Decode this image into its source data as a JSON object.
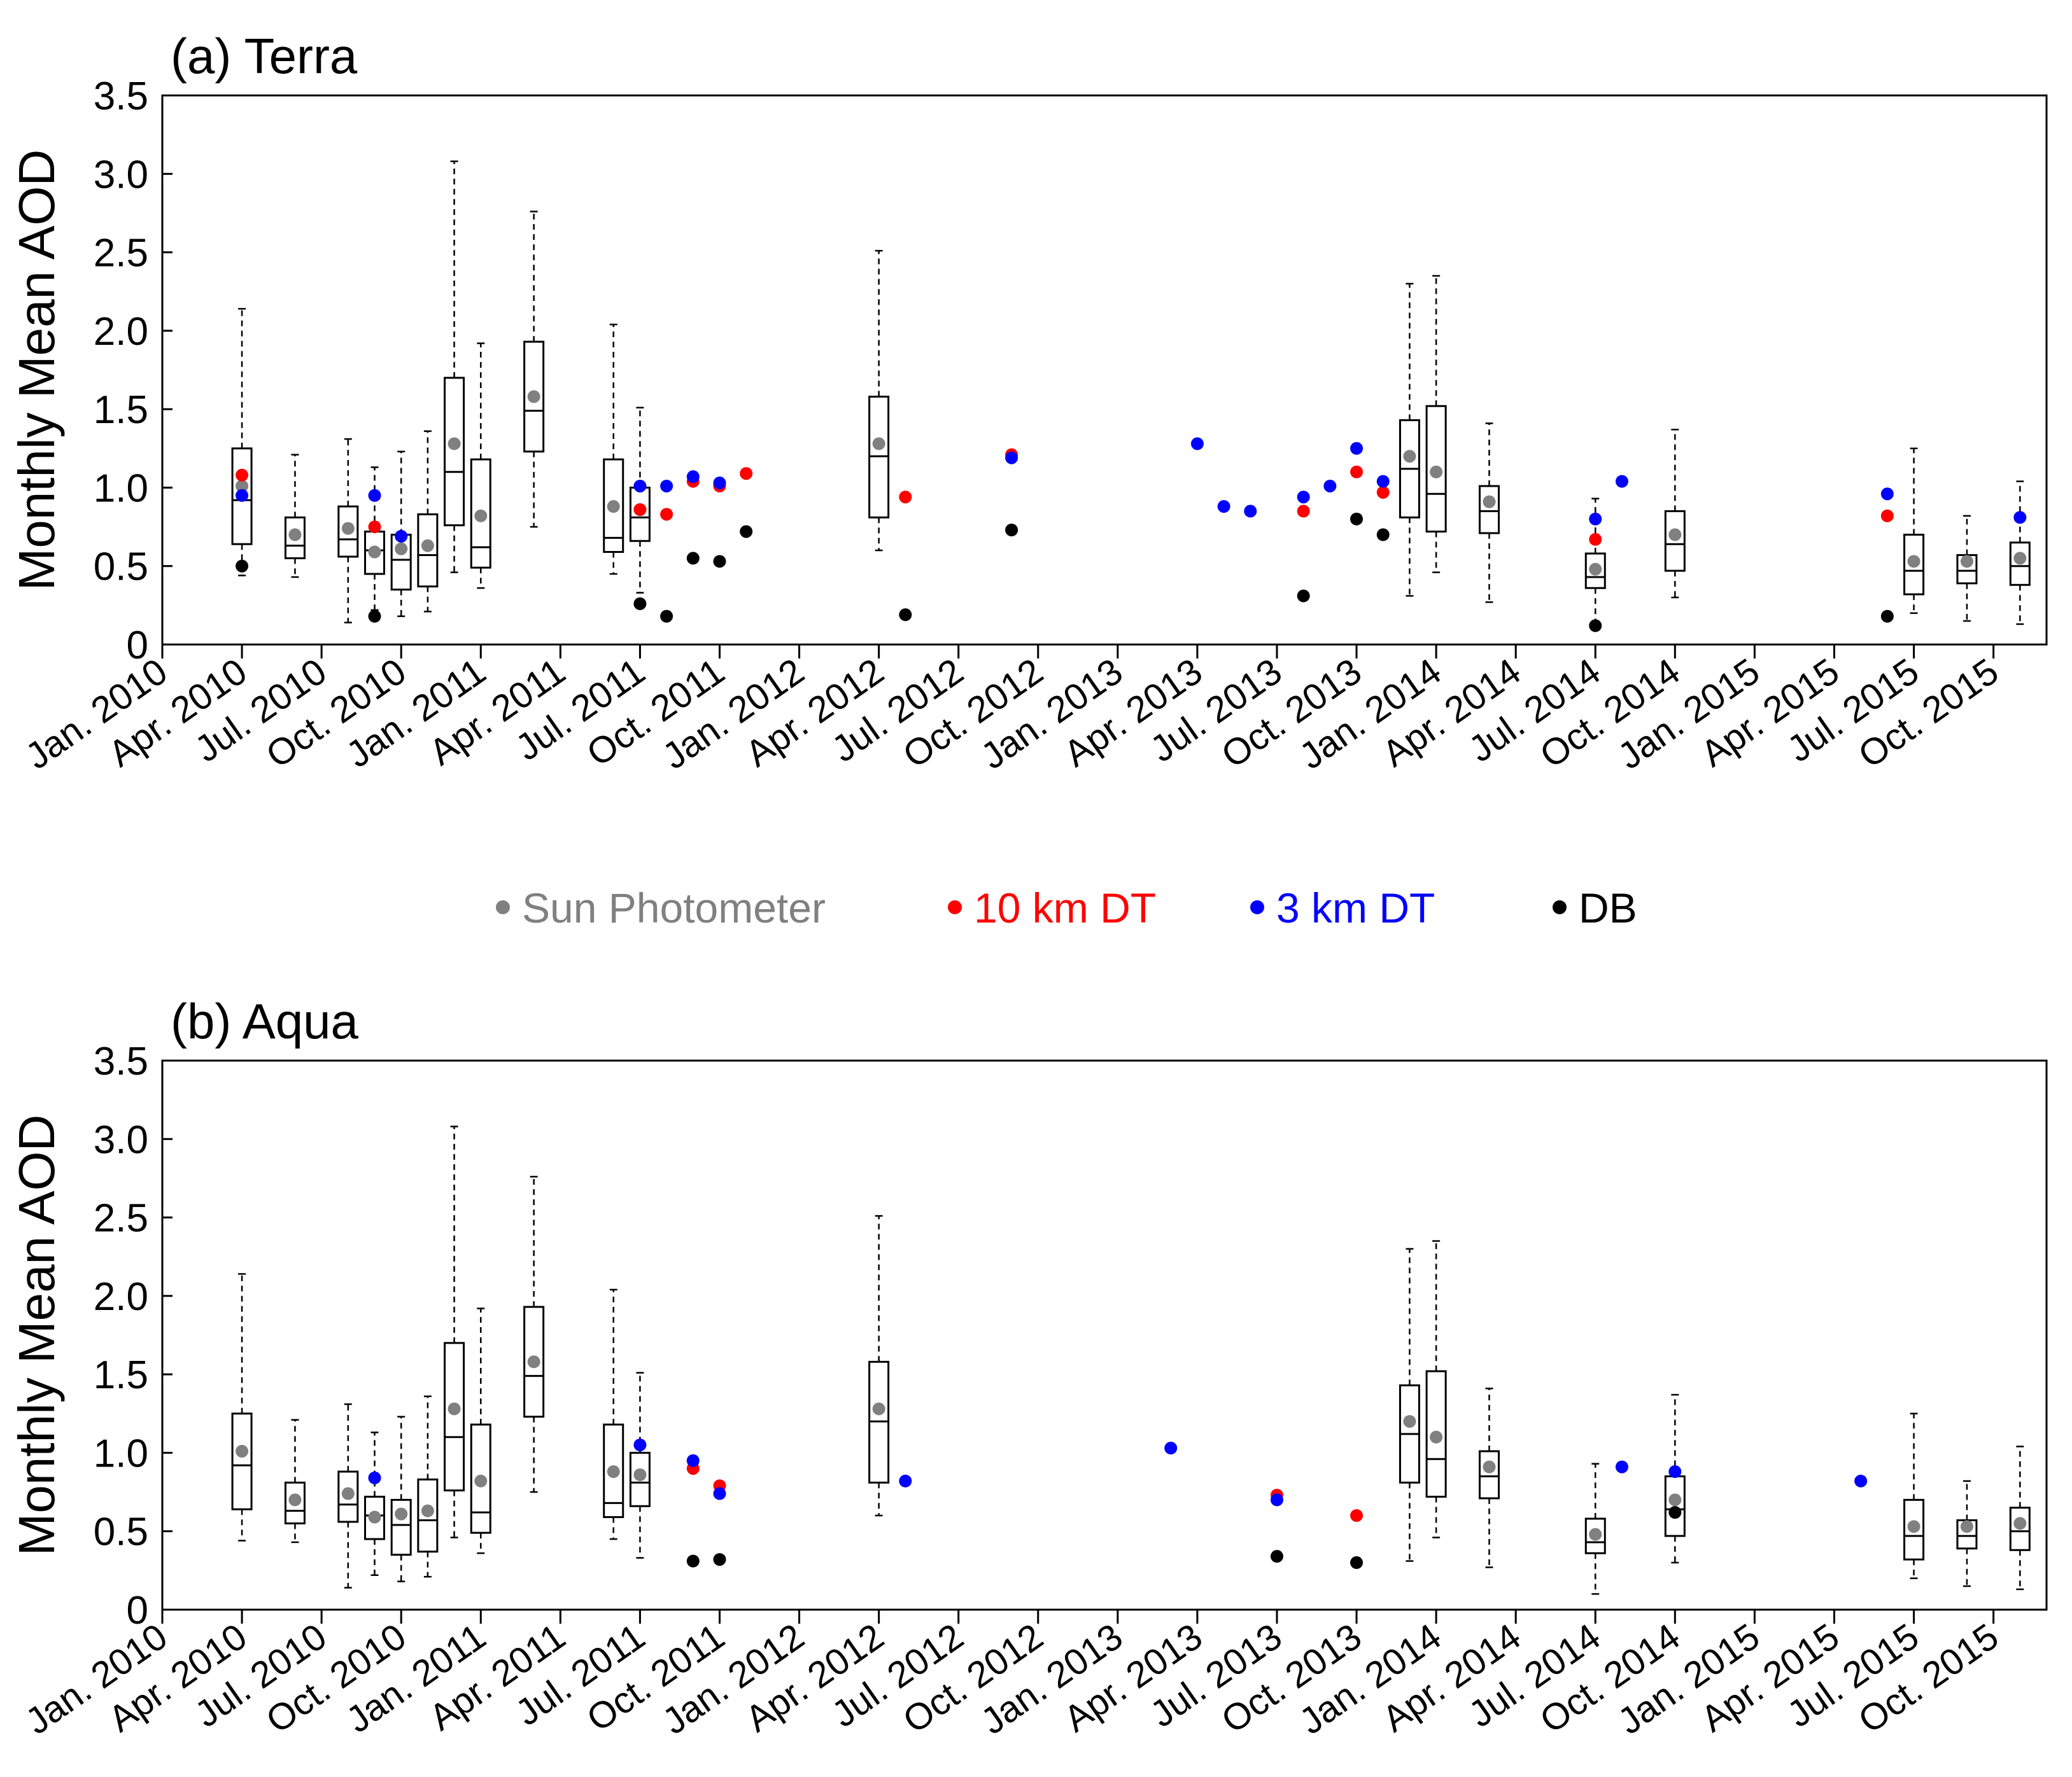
{
  "legend": {
    "placement": "center, between panels",
    "entries": [
      {
        "label": "Sun Photometer",
        "color": "#808080"
      },
      {
        "label": "10 km DT",
        "color": "#ff0000"
      },
      {
        "label": "3 km DT",
        "color": "#0000ff"
      },
      {
        "label": "DB",
        "color": "#000000"
      }
    ]
  },
  "chart_data": [
    {
      "type": "box",
      "title": "(a) Terra",
      "xlabel": "",
      "ylabel": "Monthly Mean AOD",
      "ylim": [
        0,
        3.5
      ],
      "xlim_months": [
        0,
        71
      ],
      "xticks": {
        "months": [
          0,
          3,
          6,
          9,
          12,
          15,
          18,
          21,
          24,
          27,
          30,
          33,
          36,
          39,
          42,
          45,
          48,
          51,
          54,
          57,
          60,
          63,
          66,
          69
        ],
        "labels": [
          "Jan. 2010",
          "Apr. 2010",
          "Jul. 2010",
          "Oct. 2010",
          "Jan. 2011",
          "Apr. 2011",
          "Jul. 2011",
          "Oct. 2011",
          "Jan. 2012",
          "Apr. 2012",
          "Jul. 2012",
          "Oct. 2012",
          "Jan. 2013",
          "Apr. 2013",
          "Jul. 2013",
          "Oct. 2013",
          "Jan. 2014",
          "Apr. 2014",
          "Jul. 2014",
          "Oct. 2014",
          "Jan. 2015",
          "Apr. 2015",
          "Jul. 2015",
          "Oct. 2015"
        ]
      },
      "yticks": {
        "values": [
          0,
          0.5,
          1,
          1.5,
          2,
          2.5,
          3,
          3.5
        ],
        "labels": [
          "0",
          "0.5",
          "1.0",
          "1.5",
          "2.0",
          "2.5",
          "3.0",
          "3.5"
        ]
      },
      "sun_photometer_boxes": [
        {
          "month": 3,
          "min": 0.44,
          "q1": 0.64,
          "median": 0.92,
          "q3": 1.25,
          "max": 2.14,
          "mean": 1.01
        },
        {
          "month": 5,
          "min": 0.43,
          "q1": 0.55,
          "median": 0.63,
          "q3": 0.81,
          "max": 1.21,
          "mean": 0.7
        },
        {
          "month": 7,
          "min": 0.14,
          "q1": 0.56,
          "median": 0.67,
          "q3": 0.88,
          "max": 1.31,
          "mean": 0.74
        },
        {
          "month": 8,
          "min": 0.22,
          "q1": 0.45,
          "median": 0.6,
          "q3": 0.72,
          "max": 1.13,
          "mean": 0.59
        },
        {
          "month": 9,
          "min": 0.18,
          "q1": 0.35,
          "median": 0.54,
          "q3": 0.7,
          "max": 1.23,
          "mean": 0.61
        },
        {
          "month": 10,
          "min": 0.21,
          "q1": 0.37,
          "median": 0.57,
          "q3": 0.83,
          "max": 1.36,
          "mean": 0.63
        },
        {
          "month": 11,
          "min": 0.46,
          "q1": 0.76,
          "median": 1.1,
          "q3": 1.7,
          "max": 3.08,
          "mean": 1.28
        },
        {
          "month": 12,
          "min": 0.36,
          "q1": 0.49,
          "median": 0.62,
          "q3": 1.18,
          "max": 1.92,
          "mean": 0.82
        },
        {
          "month": 14,
          "min": 0.75,
          "q1": 1.23,
          "median": 1.49,
          "q3": 1.93,
          "max": 2.76,
          "mean": 1.58
        },
        {
          "month": 17,
          "min": 0.45,
          "q1": 0.59,
          "median": 0.68,
          "q3": 1.18,
          "max": 2.04,
          "mean": 0.88
        },
        {
          "month": 18,
          "min": 0.33,
          "q1": 0.66,
          "median": 0.81,
          "q3": 1.0,
          "max": 1.51,
          "mean": 0.86
        },
        {
          "month": 27,
          "min": 0.6,
          "q1": 0.81,
          "median": 1.2,
          "q3": 1.58,
          "max": 2.51,
          "mean": 1.28
        },
        {
          "month": 47,
          "min": 0.31,
          "q1": 0.81,
          "median": 1.12,
          "q3": 1.43,
          "max": 2.3,
          "mean": 1.2
        },
        {
          "month": 48,
          "min": 0.46,
          "q1": 0.72,
          "median": 0.96,
          "q3": 1.52,
          "max": 2.35,
          "mean": 1.1
        },
        {
          "month": 50,
          "min": 0.27,
          "q1": 0.71,
          "median": 0.85,
          "q3": 1.01,
          "max": 1.41,
          "mean": 0.91
        },
        {
          "month": 54,
          "min": 0.1,
          "q1": 0.36,
          "median": 0.43,
          "q3": 0.58,
          "max": 0.93,
          "mean": 0.48
        },
        {
          "month": 57,
          "min": 0.3,
          "q1": 0.47,
          "median": 0.64,
          "q3": 0.85,
          "max": 1.37,
          "mean": 0.7
        },
        {
          "month": 66,
          "min": 0.2,
          "q1": 0.32,
          "median": 0.47,
          "q3": 0.7,
          "max": 1.25,
          "mean": 0.53
        },
        {
          "month": 68,
          "min": 0.15,
          "q1": 0.39,
          "median": 0.47,
          "q3": 0.57,
          "max": 0.82,
          "mean": 0.53
        },
        {
          "month": 70,
          "min": 0.13,
          "q1": 0.38,
          "median": 0.5,
          "q3": 0.65,
          "max": 1.04,
          "mean": 0.55
        }
      ],
      "series": [
        {
          "name": "10 km DT",
          "points": [
            [
              3,
              1.08
            ],
            [
              8,
              0.75
            ],
            [
              18,
              0.86
            ],
            [
              19,
              0.83
            ],
            [
              20,
              1.04
            ],
            [
              21,
              1.01
            ],
            [
              22,
              1.09
            ],
            [
              28,
              0.94
            ],
            [
              32,
              1.21
            ],
            [
              43,
              0.85
            ],
            [
              45,
              1.1
            ],
            [
              46,
              0.97
            ],
            [
              54,
              0.67
            ],
            [
              65,
              0.82
            ]
          ]
        },
        {
          "name": "3 km DT",
          "points": [
            [
              3,
              0.95
            ],
            [
              8,
              0.95
            ],
            [
              9,
              0.69
            ],
            [
              18,
              1.01
            ],
            [
              19,
              1.01
            ],
            [
              20,
              1.07
            ],
            [
              21,
              1.03
            ],
            [
              32,
              1.19
            ],
            [
              39,
              1.28
            ],
            [
              40,
              0.88
            ],
            [
              41,
              0.85
            ],
            [
              43,
              0.94
            ],
            [
              44,
              1.01
            ],
            [
              45,
              1.25
            ],
            [
              46,
              1.04
            ],
            [
              54,
              0.8
            ],
            [
              55,
              1.04
            ],
            [
              65,
              0.96
            ],
            [
              70,
              0.81
            ]
          ]
        },
        {
          "name": "DB",
          "points": [
            [
              3,
              0.5
            ],
            [
              8,
              0.18
            ],
            [
              18,
              0.26
            ],
            [
              19,
              0.18
            ],
            [
              20,
              0.55
            ],
            [
              21,
              0.53
            ],
            [
              22,
              0.72
            ],
            [
              28,
              0.19
            ],
            [
              32,
              0.73
            ],
            [
              43,
              0.31
            ],
            [
              45,
              0.8
            ],
            [
              46,
              0.7
            ],
            [
              54,
              0.12
            ],
            [
              65,
              0.18
            ]
          ]
        }
      ]
    },
    {
      "type": "box",
      "title": "(b) Aqua",
      "xlabel": "",
      "ylabel": "Monthly Mean AOD",
      "ylim": [
        0,
        3.5
      ],
      "xlim_months": [
        0,
        71
      ],
      "xticks": {
        "months": [
          0,
          3,
          6,
          9,
          12,
          15,
          18,
          21,
          24,
          27,
          30,
          33,
          36,
          39,
          42,
          45,
          48,
          51,
          54,
          57,
          60,
          63,
          66,
          69
        ],
        "labels": [
          "Jan. 2010",
          "Apr. 2010",
          "Jul. 2010",
          "Oct. 2010",
          "Jan. 2011",
          "Apr. 2011",
          "Jul. 2011",
          "Oct. 2011",
          "Jan. 2012",
          "Apr. 2012",
          "Jul. 2012",
          "Oct. 2012",
          "Jan. 2013",
          "Apr. 2013",
          "Jul. 2013",
          "Oct. 2013",
          "Jan. 2014",
          "Apr. 2014",
          "Jul. 2014",
          "Oct. 2014",
          "Jan. 2015",
          "Apr. 2015",
          "Jul. 2015",
          "Oct. 2015"
        ]
      },
      "yticks": {
        "values": [
          0,
          0.5,
          1,
          1.5,
          2,
          2.5,
          3,
          3.5
        ],
        "labels": [
          "0",
          "0.5",
          "1.0",
          "1.5",
          "2.0",
          "2.5",
          "3.0",
          "3.5"
        ]
      },
      "sun_photometer_boxes": [
        {
          "month": 3,
          "min": 0.44,
          "q1": 0.64,
          "median": 0.92,
          "q3": 1.25,
          "max": 2.14,
          "mean": 1.01
        },
        {
          "month": 5,
          "min": 0.43,
          "q1": 0.55,
          "median": 0.63,
          "q3": 0.81,
          "max": 1.21,
          "mean": 0.7
        },
        {
          "month": 7,
          "min": 0.14,
          "q1": 0.56,
          "median": 0.67,
          "q3": 0.88,
          "max": 1.31,
          "mean": 0.74
        },
        {
          "month": 8,
          "min": 0.22,
          "q1": 0.45,
          "median": 0.6,
          "q3": 0.72,
          "max": 1.13,
          "mean": 0.59
        },
        {
          "month": 9,
          "min": 0.18,
          "q1": 0.35,
          "median": 0.54,
          "q3": 0.7,
          "max": 1.23,
          "mean": 0.61
        },
        {
          "month": 10,
          "min": 0.21,
          "q1": 0.37,
          "median": 0.57,
          "q3": 0.83,
          "max": 1.36,
          "mean": 0.63
        },
        {
          "month": 11,
          "min": 0.46,
          "q1": 0.76,
          "median": 1.1,
          "q3": 1.7,
          "max": 3.08,
          "mean": 1.28
        },
        {
          "month": 12,
          "min": 0.36,
          "q1": 0.49,
          "median": 0.62,
          "q3": 1.18,
          "max": 1.92,
          "mean": 0.82
        },
        {
          "month": 14,
          "min": 0.75,
          "q1": 1.23,
          "median": 1.49,
          "q3": 1.93,
          "max": 2.76,
          "mean": 1.58
        },
        {
          "month": 17,
          "min": 0.45,
          "q1": 0.59,
          "median": 0.68,
          "q3": 1.18,
          "max": 2.04,
          "mean": 0.88
        },
        {
          "month": 18,
          "min": 0.33,
          "q1": 0.66,
          "median": 0.81,
          "q3": 1.0,
          "max": 1.51,
          "mean": 0.86
        },
        {
          "month": 27,
          "min": 0.6,
          "q1": 0.81,
          "median": 1.2,
          "q3": 1.58,
          "max": 2.51,
          "mean": 1.28
        },
        {
          "month": 47,
          "min": 0.31,
          "q1": 0.81,
          "median": 1.12,
          "q3": 1.43,
          "max": 2.3,
          "mean": 1.2
        },
        {
          "month": 48,
          "min": 0.46,
          "q1": 0.72,
          "median": 0.96,
          "q3": 1.52,
          "max": 2.35,
          "mean": 1.1
        },
        {
          "month": 50,
          "min": 0.27,
          "q1": 0.71,
          "median": 0.85,
          "q3": 1.01,
          "max": 1.41,
          "mean": 0.91
        },
        {
          "month": 54,
          "min": 0.1,
          "q1": 0.36,
          "median": 0.43,
          "q3": 0.58,
          "max": 0.93,
          "mean": 0.48
        },
        {
          "month": 57,
          "min": 0.3,
          "q1": 0.47,
          "median": 0.64,
          "q3": 0.85,
          "max": 1.37,
          "mean": 0.7
        },
        {
          "month": 66,
          "min": 0.2,
          "q1": 0.32,
          "median": 0.47,
          "q3": 0.7,
          "max": 1.25,
          "mean": 0.53
        },
        {
          "month": 68,
          "min": 0.15,
          "q1": 0.39,
          "median": 0.47,
          "q3": 0.57,
          "max": 0.82,
          "mean": 0.53
        },
        {
          "month": 70,
          "min": 0.13,
          "q1": 0.38,
          "median": 0.5,
          "q3": 0.65,
          "max": 1.04,
          "mean": 0.55
        }
      ],
      "series": [
        {
          "name": "10 km DT",
          "points": [
            [
              20,
              0.9
            ],
            [
              21,
              0.79
            ],
            [
              42,
              0.73
            ],
            [
              45,
              0.6
            ]
          ]
        },
        {
          "name": "3 km DT",
          "points": [
            [
              8,
              0.84
            ],
            [
              18,
              1.05
            ],
            [
              20,
              0.95
            ],
            [
              21,
              0.74
            ],
            [
              28,
              0.82
            ],
            [
              38,
              1.03
            ],
            [
              42,
              0.7
            ],
            [
              55,
              0.91
            ],
            [
              57,
              0.88
            ],
            [
              64,
              0.82
            ]
          ]
        },
        {
          "name": "DB",
          "points": [
            [
              20,
              0.31
            ],
            [
              21,
              0.32
            ],
            [
              42,
              0.34
            ],
            [
              45,
              0.3
            ],
            [
              57,
              0.62
            ]
          ]
        }
      ]
    }
  ]
}
